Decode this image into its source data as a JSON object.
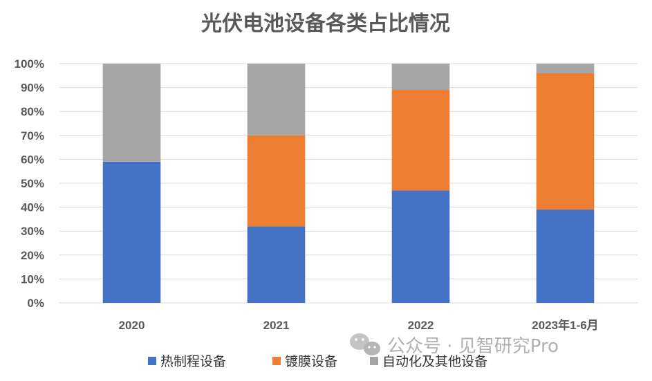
{
  "chart_data": {
    "type": "bar",
    "stacked": true,
    "title": "光伏电池设备各类占比情况",
    "categories": [
      "2020",
      "2021",
      "2022",
      "2023年1-6月"
    ],
    "series": [
      {
        "name": "热制程设备",
        "color": "#4472C4",
        "values": [
          59,
          32,
          47,
          39
        ]
      },
      {
        "name": "镀膜设备",
        "color": "#ED7D31",
        "values": [
          0,
          38,
          42,
          57
        ]
      },
      {
        "name": "自动化及其他设备",
        "color": "#A5A5A5",
        "values": [
          41,
          30,
          11,
          4
        ]
      }
    ],
    "ylim": [
      0,
      100
    ],
    "y_ticks": [
      "0%",
      "10%",
      "20%",
      "30%",
      "40%",
      "50%",
      "60%",
      "70%",
      "80%",
      "90%",
      "100%"
    ],
    "grid": true,
    "legend_position": "bottom"
  },
  "watermark": {
    "text": "公众号 · 见智研究Pro",
    "icon": "wechat-icon"
  }
}
